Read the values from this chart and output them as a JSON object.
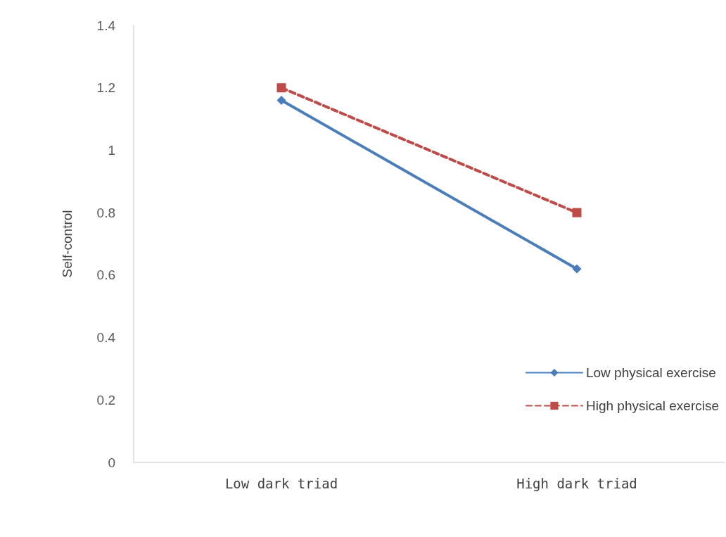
{
  "chart_data": {
    "type": "line",
    "ylabel": "Self-control",
    "categories": [
      "Low dark triad",
      "High dark triad"
    ],
    "series": [
      {
        "name": "Low physical exercise",
        "color": "#4a7ebb",
        "values": [
          1.16,
          0.62
        ],
        "marker": "diamond",
        "line_style": "solid"
      },
      {
        "name": "High physical exercise",
        "color": "#be4b48",
        "values": [
          1.2,
          0.8
        ],
        "marker": "square",
        "line_style": "dashed"
      }
    ],
    "ylim": [
      0,
      1.4
    ],
    "yticks": [
      0,
      0.2,
      0.4,
      0.6,
      0.8,
      1,
      1.2,
      1.4
    ],
    "grid": false,
    "legend": "right"
  }
}
